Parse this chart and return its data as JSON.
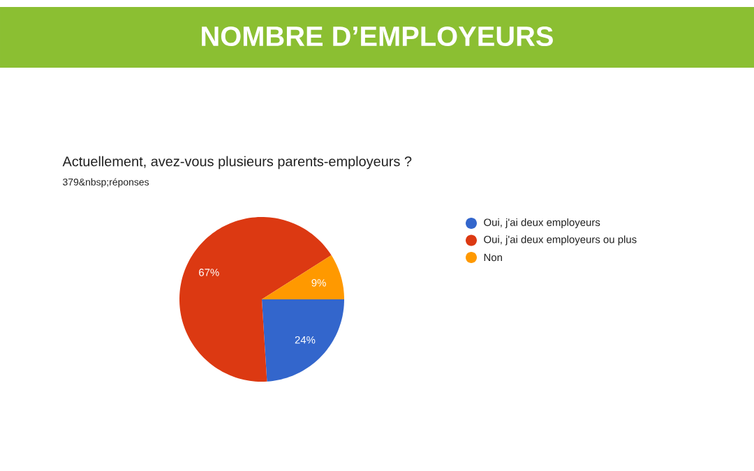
{
  "chart_data": {
    "type": "pie",
    "title": "NOMBRE D’EMPLOYEURS",
    "subtitle": "Actuellement, avez-vous plusieurs parents-employeurs ?",
    "annotations": [
      "379&nbsp;réponses"
    ],
    "categories": [
      "Oui, j'ai deux employeurs",
      "Oui, j'ai deux employeurs ou plus",
      "Non"
    ],
    "values": [
      24,
      67,
      9
    ],
    "colors": [
      "#3366cc",
      "#dc3912",
      "#ff9900"
    ],
    "value_labels": [
      "24%",
      "67%",
      "9%"
    ],
    "legend": "right"
  }
}
